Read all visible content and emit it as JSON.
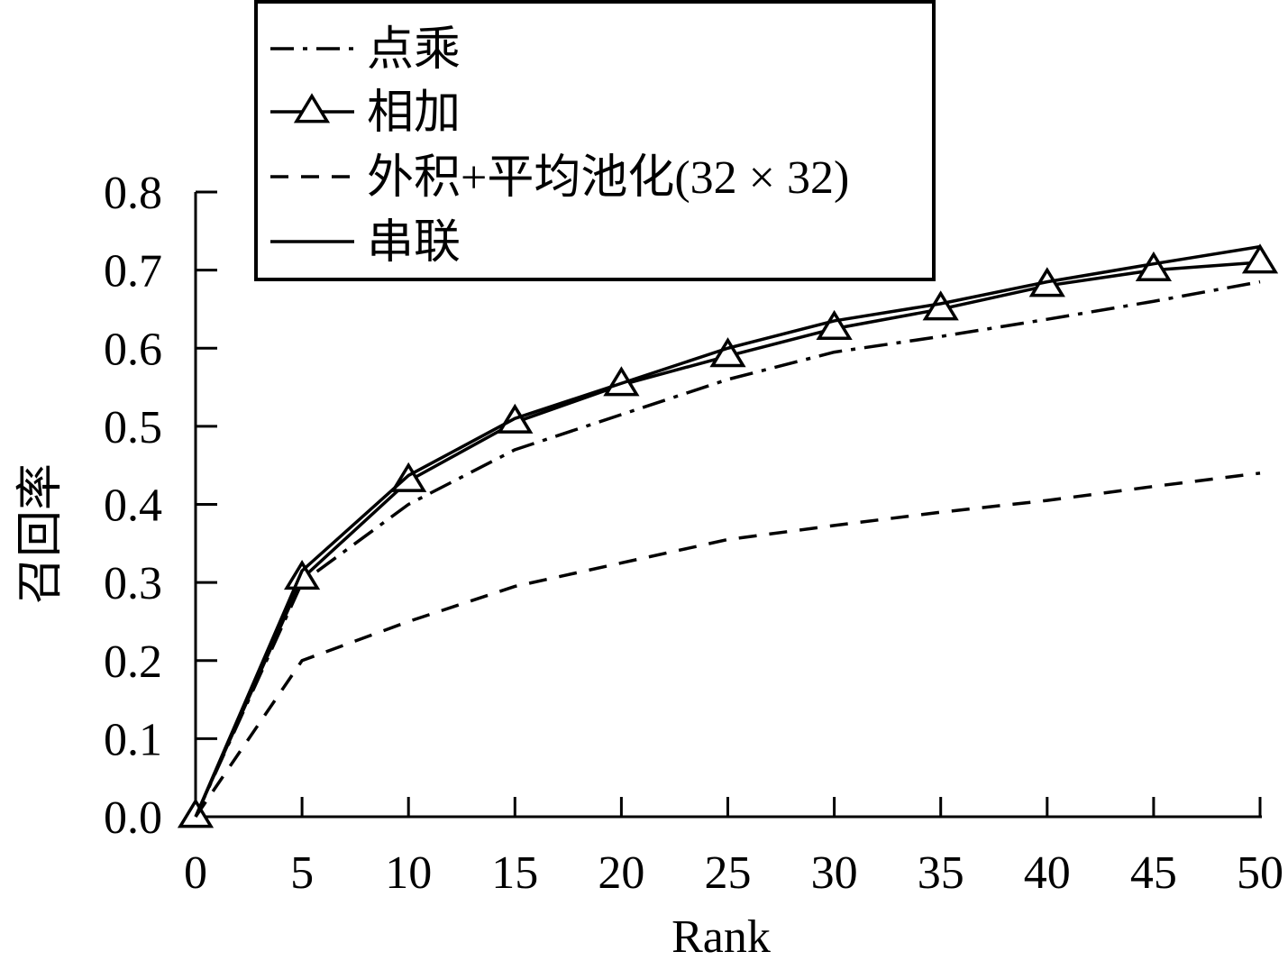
{
  "chart_data": {
    "type": "line",
    "xlabel": "Rank",
    "ylabel": "召回率",
    "xlim": [
      0,
      50
    ],
    "ylim": [
      0,
      0.8
    ],
    "x_ticks": [
      "0",
      "5",
      "10",
      "15",
      "20",
      "25",
      "30",
      "35",
      "40",
      "45",
      "50"
    ],
    "y_ticks": [
      "0.0",
      "0.1",
      "0.2",
      "0.3",
      "0.4",
      "0.5",
      "0.6",
      "0.7",
      "0.8"
    ],
    "grid": false,
    "legend_position": "top",
    "x": [
      0,
      5,
      10,
      15,
      20,
      25,
      30,
      35,
      40,
      45,
      50
    ],
    "series": [
      {
        "name": "点乘",
        "style": "dash-dot",
        "marker": "none",
        "values": [
          0.0,
          0.3,
          0.4,
          0.47,
          0.515,
          0.56,
          0.595,
          0.615,
          0.637,
          0.66,
          0.685
        ]
      },
      {
        "name": "相加",
        "style": "solid",
        "marker": "triangle",
        "values": [
          0.0,
          0.305,
          0.43,
          0.505,
          0.553,
          0.59,
          0.625,
          0.65,
          0.68,
          0.7,
          0.71
        ]
      },
      {
        "name": "外积+平均池化(32 × 32)",
        "style": "dashed",
        "marker": "none",
        "values": [
          0.0,
          0.2,
          0.25,
          0.295,
          0.325,
          0.355,
          0.373,
          0.39,
          0.405,
          0.423,
          0.44
        ]
      },
      {
        "name": "串联",
        "style": "solid",
        "marker": "none",
        "values": [
          0.0,
          0.315,
          0.437,
          0.51,
          0.555,
          0.6,
          0.635,
          0.657,
          0.685,
          0.708,
          0.73
        ]
      }
    ]
  },
  "colors": {
    "line": "#000000",
    "background": "#ffffff"
  }
}
